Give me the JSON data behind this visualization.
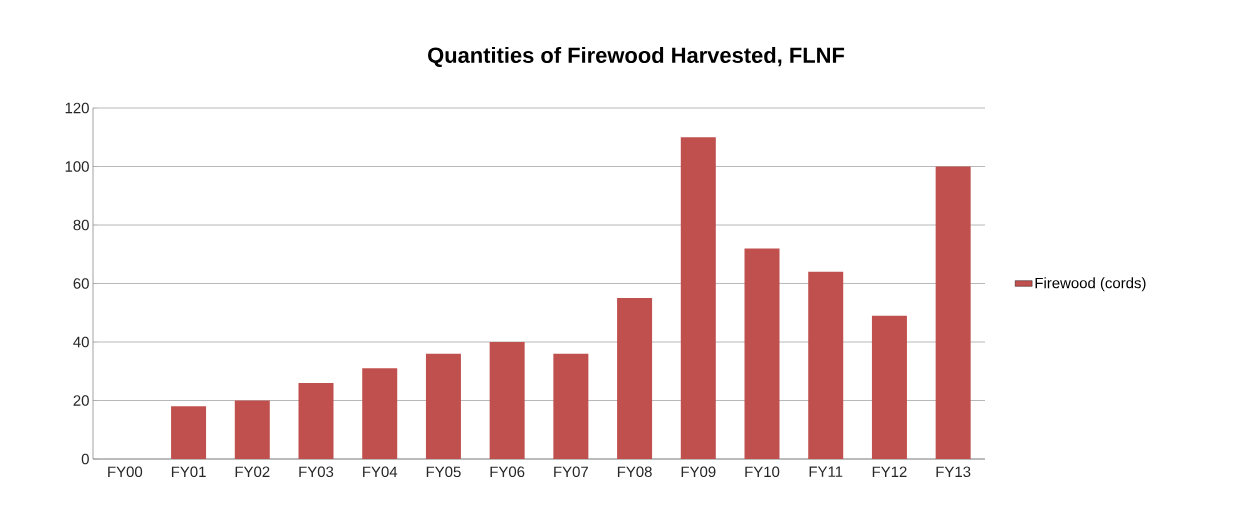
{
  "chart_data": {
    "type": "bar",
    "title": "Quantities of Firewood Harvested, FLNF",
    "categories": [
      "FY00",
      "FY01",
      "FY02",
      "FY03",
      "FY04",
      "FY05",
      "FY06",
      "FY07",
      "FY08",
      "FY09",
      "FY10",
      "FY11",
      "FY12",
      "FY13"
    ],
    "series": [
      {
        "name": "Firewood (cords)",
        "color": "#c0504d",
        "values": [
          0,
          18,
          20,
          26,
          31,
          36,
          40,
          36,
          55,
          110,
          72,
          64,
          49,
          100
        ]
      }
    ],
    "ylim": [
      0,
      120
    ],
    "yticks": [
      0,
      20,
      40,
      60,
      80,
      100,
      120
    ],
    "grid": "y",
    "legend": "right"
  }
}
